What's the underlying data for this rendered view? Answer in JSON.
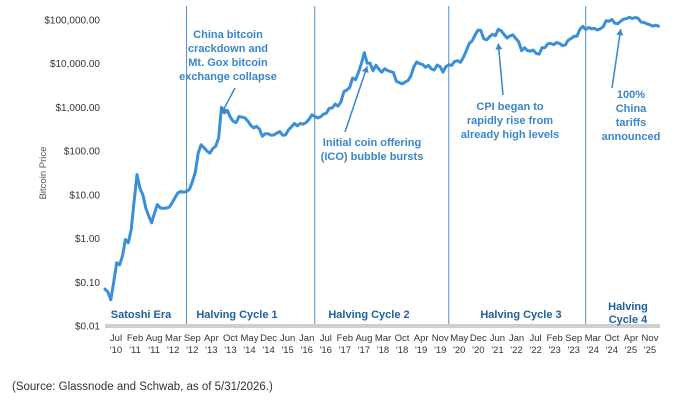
{
  "source_note": "(Source: Glassnode and Schwab, as of 5/31/2026.)",
  "chart_data": {
    "type": "line",
    "ylabel": "Bitcoin Price",
    "yscale": "log",
    "ylim": [
      0.01,
      100000
    ],
    "yticks": [
      "$100,000.00",
      "$10,000.00",
      "$1,000.00",
      "$100.00",
      "$10.00",
      "$1.00",
      "$0.10",
      "$0.01"
    ],
    "xticks": [
      {
        "m": "Jul",
        "y": "'10"
      },
      {
        "m": "Feb",
        "y": "'11"
      },
      {
        "m": "Aug",
        "y": "'11"
      },
      {
        "m": "Mar",
        "y": "'12"
      },
      {
        "m": "Sep",
        "y": "'12"
      },
      {
        "m": "Apr",
        "y": "'13"
      },
      {
        "m": "Oct",
        "y": "'13"
      },
      {
        "m": "May",
        "y": "'14"
      },
      {
        "m": "Dec",
        "y": "'14"
      },
      {
        "m": "Jun",
        "y": "'15"
      },
      {
        "m": "Jan",
        "y": "'16"
      },
      {
        "m": "Jul",
        "y": "'16"
      },
      {
        "m": "Feb",
        "y": "'17"
      },
      {
        "m": "Aug",
        "y": "'17"
      },
      {
        "m": "Mar",
        "y": "'18"
      },
      {
        "m": "Oct",
        "y": "'18"
      },
      {
        "m": "Apr",
        "y": "'19"
      },
      {
        "m": "Nov",
        "y": "'19"
      },
      {
        "m": "May",
        "y": "'20"
      },
      {
        "m": "Dec",
        "y": "'20"
      },
      {
        "m": "Jun",
        "y": "'21"
      },
      {
        "m": "Jan",
        "y": "'22"
      },
      {
        "m": "Jul",
        "y": "'22"
      },
      {
        "m": "Feb",
        "y": "'23"
      },
      {
        "m": "Sep",
        "y": "'23"
      },
      {
        "m": "Mar",
        "y": "'24"
      },
      {
        "m": "Oct",
        "y": "'24"
      },
      {
        "m": "Apr",
        "y": "'25"
      },
      {
        "m": "Nov",
        "y": "'25"
      }
    ],
    "x_start": "2010-07",
    "x_end": "2026-05",
    "series": [
      {
        "color": "#3a8fd6",
        "points": [
          [
            "2010-07",
            0.07
          ],
          [
            "2010-08",
            0.06
          ],
          [
            "2010-09",
            0.04
          ],
          [
            "2010-10",
            0.1
          ],
          [
            "2010-11",
            0.28
          ],
          [
            "2010-12",
            0.25
          ],
          [
            "2011-01",
            0.4
          ],
          [
            "2011-02",
            0.95
          ],
          [
            "2011-03",
            0.8
          ],
          [
            "2011-04",
            1.6
          ],
          [
            "2011-05",
            7.0
          ],
          [
            "2011-06",
            29.0
          ],
          [
            "2011-07",
            14.0
          ],
          [
            "2011-08",
            10.0
          ],
          [
            "2011-09",
            5.0
          ],
          [
            "2011-10",
            3.3
          ],
          [
            "2011-11",
            2.3
          ],
          [
            "2011-12",
            3.8
          ],
          [
            "2012-01",
            6.0
          ],
          [
            "2012-02",
            5.0
          ],
          [
            "2012-03",
            4.9
          ],
          [
            "2012-04",
            5.0
          ],
          [
            "2012-05",
            5.2
          ],
          [
            "2012-06",
            6.5
          ],
          [
            "2012-07",
            8.5
          ],
          [
            "2012-08",
            11.0
          ],
          [
            "2012-09",
            12.0
          ],
          [
            "2012-10",
            11.5
          ],
          [
            "2012-11",
            12.0
          ],
          [
            "2012-12",
            13.5
          ],
          [
            "2013-01",
            20.0
          ],
          [
            "2013-02",
            33.0
          ],
          [
            "2013-03",
            90.0
          ],
          [
            "2013-04",
            140.0
          ],
          [
            "2013-05",
            120.0
          ],
          [
            "2013-06",
            100.0
          ],
          [
            "2013-07",
            90.0
          ],
          [
            "2013-08",
            115.0
          ],
          [
            "2013-09",
            130.0
          ],
          [
            "2013-10",
            200.0
          ],
          [
            "2013-11",
            1000.0
          ],
          [
            "2013-12",
            750.0
          ],
          [
            "2014-01",
            850.0
          ],
          [
            "2014-02",
            600.0
          ],
          [
            "2014-03",
            480.0
          ],
          [
            "2014-04",
            450.0
          ],
          [
            "2014-05",
            620.0
          ],
          [
            "2014-06",
            600.0
          ],
          [
            "2014-07",
            580.0
          ],
          [
            "2014-08",
            490.0
          ],
          [
            "2014-09",
            390.0
          ],
          [
            "2014-10",
            340.0
          ],
          [
            "2014-11",
            370.0
          ],
          [
            "2014-12",
            320.0
          ],
          [
            "2015-01",
            220.0
          ],
          [
            "2015-02",
            250.0
          ],
          [
            "2015-03",
            250.0
          ],
          [
            "2015-04",
            230.0
          ],
          [
            "2015-05",
            235.0
          ],
          [
            "2015-06",
            260.0
          ],
          [
            "2015-07",
            280.0
          ],
          [
            "2015-08",
            230.0
          ],
          [
            "2015-09",
            235.0
          ],
          [
            "2015-10",
            310.0
          ],
          [
            "2015-11",
            360.0
          ],
          [
            "2015-12",
            430.0
          ],
          [
            "2016-01",
            380.0
          ],
          [
            "2016-02",
            430.0
          ],
          [
            "2016-03",
            415.0
          ],
          [
            "2016-04",
            450.0
          ],
          [
            "2016-05",
            530.0
          ],
          [
            "2016-06",
            680.0
          ],
          [
            "2016-07",
            620.0
          ],
          [
            "2016-08",
            575.0
          ],
          [
            "2016-09",
            610.0
          ],
          [
            "2016-10",
            700.0
          ],
          [
            "2016-11",
            740.0
          ],
          [
            "2016-12",
            960.0
          ],
          [
            "2017-01",
            970.0
          ],
          [
            "2017-02",
            1190.0
          ],
          [
            "2017-03",
            1070.0
          ],
          [
            "2017-04",
            1350.0
          ],
          [
            "2017-05",
            2300.0
          ],
          [
            "2017-06",
            2500.0
          ],
          [
            "2017-07",
            2850.0
          ],
          [
            "2017-08",
            4700.0
          ],
          [
            "2017-09",
            4300.0
          ],
          [
            "2017-10",
            6400.0
          ],
          [
            "2017-11",
            10000.0
          ],
          [
            "2017-12",
            18000.0
          ],
          [
            "2018-01",
            10200.0
          ],
          [
            "2018-02",
            10300.0
          ],
          [
            "2018-03",
            6900.0
          ],
          [
            "2018-04",
            9200.0
          ],
          [
            "2018-05",
            7500.0
          ],
          [
            "2018-06",
            6400.0
          ],
          [
            "2018-07",
            7700.0
          ],
          [
            "2018-08",
            7000.0
          ],
          [
            "2018-09",
            6600.0
          ],
          [
            "2018-10",
            6300.0
          ],
          [
            "2018-11",
            4000.0
          ],
          [
            "2018-12",
            3700.0
          ],
          [
            "2019-01",
            3450.0
          ],
          [
            "2019-02",
            3800.0
          ],
          [
            "2019-03",
            4100.0
          ],
          [
            "2019-04",
            5300.0
          ],
          [
            "2019-05",
            8500.0
          ],
          [
            "2019-06",
            11000.0
          ],
          [
            "2019-07",
            10000.0
          ],
          [
            "2019-08",
            9600.0
          ],
          [
            "2019-09",
            8300.0
          ],
          [
            "2019-10",
            9200.0
          ],
          [
            "2019-11",
            7600.0
          ],
          [
            "2019-12",
            7200.0
          ],
          [
            "2020-01",
            9300.0
          ],
          [
            "2020-02",
            8600.0
          ],
          [
            "2020-03",
            6400.0
          ],
          [
            "2020-04",
            8600.0
          ],
          [
            "2020-05",
            9450.0
          ],
          [
            "2020-06",
            9150.0
          ],
          [
            "2020-07",
            11300.0
          ],
          [
            "2020-08",
            11700.0
          ],
          [
            "2020-09",
            10800.0
          ],
          [
            "2020-10",
            13800.0
          ],
          [
            "2020-11",
            19700.0
          ],
          [
            "2020-12",
            29000.0
          ],
          [
            "2021-01",
            33000.0
          ],
          [
            "2021-02",
            45000.0
          ],
          [
            "2021-03",
            58800.0
          ],
          [
            "2021-04",
            57700.0
          ],
          [
            "2021-05",
            37300.0
          ],
          [
            "2021-06",
            35000.0
          ],
          [
            "2021-07",
            41500.0
          ],
          [
            "2021-08",
            47100.0
          ],
          [
            "2021-09",
            43800.0
          ],
          [
            "2021-10",
            61300.0
          ],
          [
            "2021-11",
            57000.0
          ],
          [
            "2021-12",
            46300.0
          ],
          [
            "2022-01",
            38500.0
          ],
          [
            "2022-02",
            43200.0
          ],
          [
            "2022-03",
            45500.0
          ],
          [
            "2022-04",
            37700.0
          ],
          [
            "2022-05",
            31800.0
          ],
          [
            "2022-06",
            19900.0
          ],
          [
            "2022-07",
            23300.0
          ],
          [
            "2022-08",
            20000.0
          ],
          [
            "2022-09",
            19400.0
          ],
          [
            "2022-10",
            20500.0
          ],
          [
            "2022-11",
            17200.0
          ],
          [
            "2022-12",
            16500.0
          ],
          [
            "2023-01",
            23100.0
          ],
          [
            "2023-02",
            23100.0
          ],
          [
            "2023-03",
            28500.0
          ],
          [
            "2023-04",
            29300.0
          ],
          [
            "2023-05",
            27200.0
          ],
          [
            "2023-06",
            30500.0
          ],
          [
            "2023-07",
            29200.0
          ],
          [
            "2023-08",
            26000.0
          ],
          [
            "2023-09",
            27000.0
          ],
          [
            "2023-10",
            34500.0
          ],
          [
            "2023-11",
            37700.0
          ],
          [
            "2023-12",
            42300.0
          ],
          [
            "2024-01",
            42600.0
          ],
          [
            "2024-02",
            61200.0
          ],
          [
            "2024-03",
            71300.0
          ],
          [
            "2024-04",
            60600.0
          ],
          [
            "2024-05",
            67500.0
          ],
          [
            "2024-06",
            62700.0
          ],
          [
            "2024-07",
            64600.0
          ],
          [
            "2024-08",
            58900.0
          ],
          [
            "2024-09",
            63300.0
          ],
          [
            "2024-10",
            70200.0
          ],
          [
            "2024-11",
            96400.0
          ],
          [
            "2024-12",
            93400.0
          ],
          [
            "2025-01",
            102400.0
          ],
          [
            "2025-02",
            84300.0
          ],
          [
            "2025-03",
            82500.0
          ],
          [
            "2025-04",
            94200.0
          ],
          [
            "2025-05",
            104600.0
          ],
          [
            "2025-06",
            107100.0
          ],
          [
            "2025-07",
            115700.0
          ],
          [
            "2025-08",
            108200.0
          ],
          [
            "2025-09",
            114000.0
          ],
          [
            "2025-10",
            109500.0
          ],
          [
            "2025-11",
            90000.0
          ],
          [
            "2025-12",
            87500.0
          ],
          [
            "2026-01",
            82000.0
          ],
          [
            "2026-02",
            78000.0
          ],
          [
            "2026-03",
            72000.0
          ],
          [
            "2026-04",
            76000.0
          ],
          [
            "2026-05",
            72000.0
          ]
        ]
      }
    ],
    "halving_dates": [
      "2012-11",
      "2016-07",
      "2020-05",
      "2024-04"
    ],
    "eras": [
      "Satoshi Era",
      "Halving Cycle 1",
      "Halving Cycle 2",
      "Halving Cycle 3",
      [
        "Halving",
        "Cycle 4"
      ]
    ],
    "annotations": [
      {
        "lines": [
          "China bitcoin",
          "crackdown and",
          "Mt. Gox bitcoin",
          "exchange collapse"
        ],
        "target": [
          "2013-11",
          1000.0
        ]
      },
      {
        "lines": [
          "Initial coin offering",
          "(ICO) bubble bursts"
        ],
        "target": [
          "2018-01",
          12000.0
        ]
      },
      {
        "lines": [
          "CPI began to",
          "rapidly rise from",
          "already high levels"
        ],
        "target": [
          "2021-10",
          40000.0
        ]
      },
      {
        "lines": [
          "100%",
          "China",
          "tariffs",
          "announced"
        ],
        "target": [
          "2025-04",
          94000.0
        ]
      }
    ]
  }
}
